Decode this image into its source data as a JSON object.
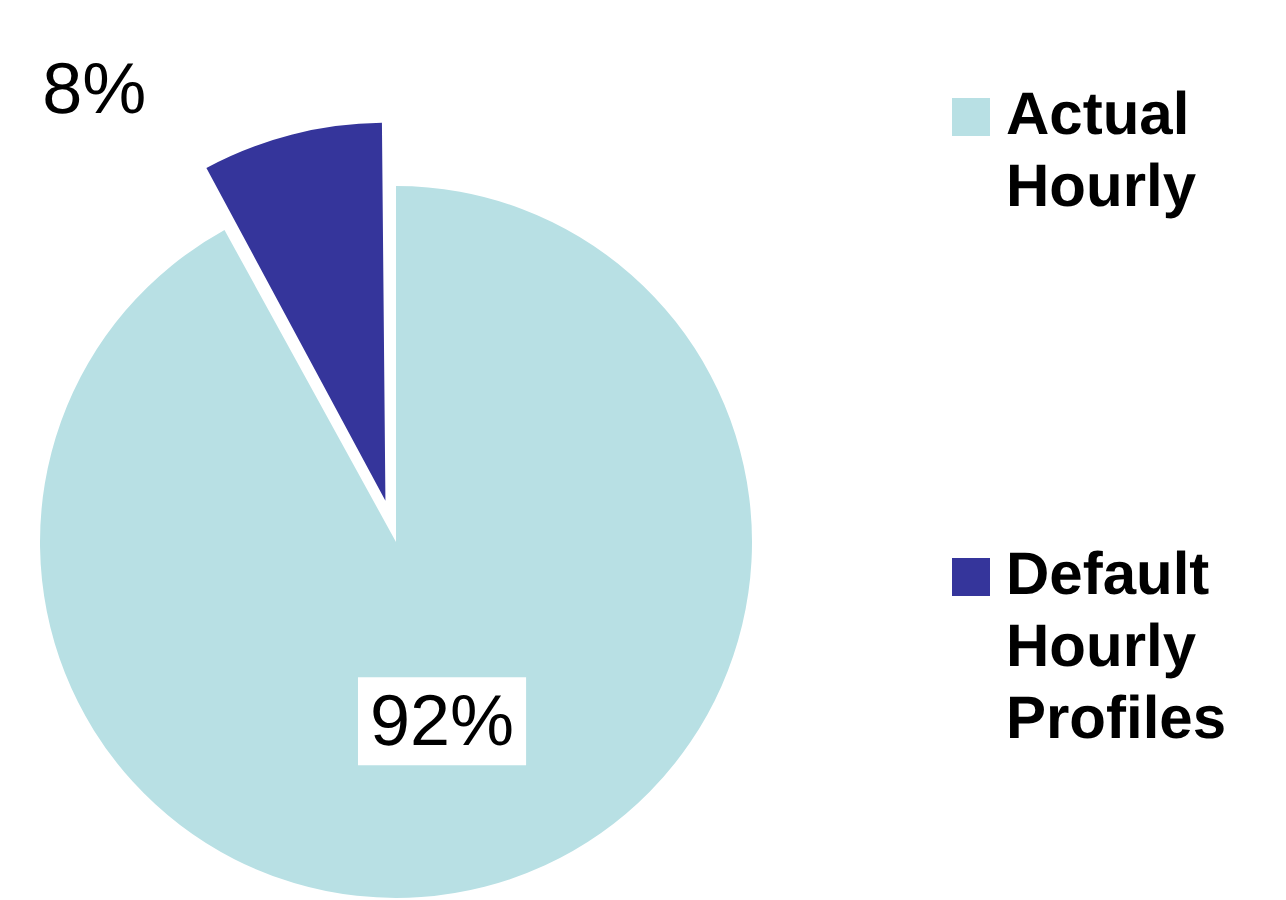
{
  "chart_data": {
    "type": "pie",
    "categories": [
      "Actual Hourly",
      "Default Hourly Profiles"
    ],
    "values": [
      92,
      8
    ],
    "colors": [
      "#b8e0e4",
      "#35359b"
    ],
    "value_labels": [
      "92%",
      "8%"
    ],
    "legend": "right"
  }
}
